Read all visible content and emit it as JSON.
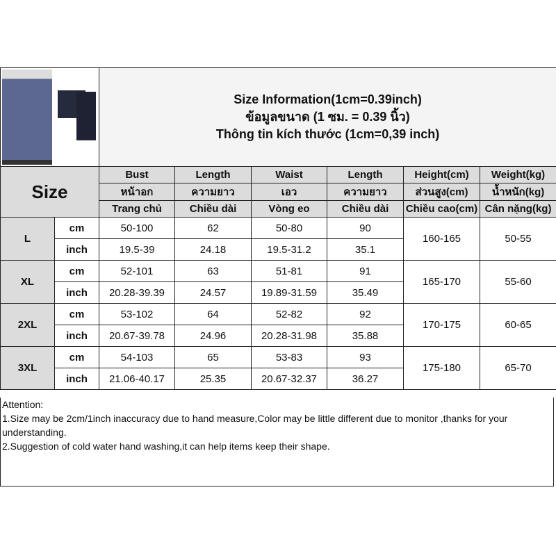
{
  "title": {
    "line1": "Size Information(1cm=0.39inch)",
    "line2": "ข้อมูลขนาด (1 ซม. = 0.39 นิ้ว)",
    "line3": "Thông tin kích thước (1cm=0,39 inch)"
  },
  "size_label": "Size",
  "headers": [
    {
      "en": "Bust",
      "th": "หน้าอก",
      "vi": "Trang chủ"
    },
    {
      "en": "Length",
      "th": "ความยาว",
      "vi": "Chiều dài"
    },
    {
      "en": "Waist",
      "th": "เอว",
      "vi": "Vòng eo"
    },
    {
      "en": "Length",
      "th": "ความยาว",
      "vi": "Chiều dài"
    },
    {
      "en": "Height(cm)",
      "th": "ส่วนสูง(cm)",
      "vi": "Chiều cao(cm)"
    },
    {
      "en": "Weight(kg)",
      "th": "น้ำหนัก(kg)",
      "vi": "Cân nặng(kg)"
    }
  ],
  "rows": [
    {
      "size": "L",
      "cm_label": "cm",
      "inch_label": "inch",
      "cm": [
        "50-100",
        "62",
        "50-80",
        "90"
      ],
      "inch": [
        "19.5-39",
        "24.18",
        "19.5-31.2",
        "35.1"
      ],
      "height": "160-165",
      "weight": "50-55"
    },
    {
      "size": "XL",
      "cm_label": "cm",
      "inch_label": "inch",
      "cm": [
        "52-101",
        "63",
        "51-81",
        "91"
      ],
      "inch": [
        "20.28-39.39",
        "24.57",
        "19.89-31.59",
        "35.49"
      ],
      "height": "165-170",
      "weight": "55-60"
    },
    {
      "size": "2XL",
      "cm_label": "cm",
      "inch_label": "inch",
      "cm": [
        "53-102",
        "64",
        "52-82",
        "92"
      ],
      "inch": [
        "20.67-39.78",
        "24.96",
        "20.28-31.98",
        "35.88"
      ],
      "height": "170-175",
      "weight": "60-65"
    },
    {
      "size": "3XL",
      "cm_label": "cm",
      "inch_label": "inch",
      "cm": [
        "54-103",
        "65",
        "53-83",
        "93"
      ],
      "inch": [
        "21.06-40.17",
        "25.35",
        "20.67-32.37",
        "36.27"
      ],
      "height": "175-180",
      "weight": "65-70"
    }
  ],
  "attention": {
    "heading": "Attention:",
    "note1": "1.Size may be 2cm/1inch inaccuracy due to hand measure,Color may be little different due to monitor ,thanks for your understanding.",
    "note2": "2.Suggestion of cold water hand washing,it can help items keep their shape."
  }
}
